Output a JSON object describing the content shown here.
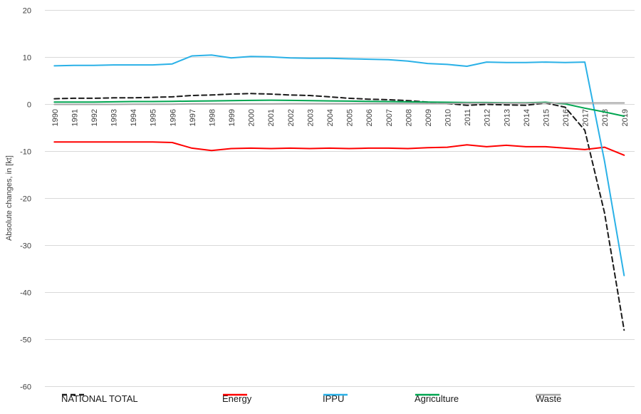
{
  "chart_data": {
    "type": "line",
    "title": "",
    "xlabel": "",
    "ylabel": "Absolute changes, in [kt]",
    "ylim": [
      -60,
      20
    ],
    "yticks": [
      20,
      10,
      0,
      -10,
      -20,
      -30,
      -40,
      -50,
      -60
    ],
    "grid": true,
    "legend_position": "bottom",
    "categories": [
      "1990",
      "1991",
      "1992",
      "1993",
      "1994",
      "1995",
      "1996",
      "1997",
      "1998",
      "1999",
      "2000",
      "2001",
      "2002",
      "2003",
      "2004",
      "2005",
      "2006",
      "2007",
      "2008",
      "2009",
      "2010",
      "2011",
      "2012",
      "2013",
      "2014",
      "2015",
      "2016",
      "2017",
      "2018",
      "2019"
    ],
    "series": [
      {
        "name": "NATIONAL TOTAL",
        "color": "#1a1a1a",
        "style": "dashed",
        "values": [
          1.2,
          1.3,
          1.3,
          1.4,
          1.4,
          1.5,
          1.6,
          1.9,
          2.0,
          2.2,
          2.3,
          2.2,
          2.0,
          1.9,
          1.6,
          1.3,
          1.1,
          1.0,
          0.8,
          0.5,
          0.2,
          -0.2,
          0.0,
          -0.1,
          -0.2,
          0.3,
          -0.6,
          -5.5,
          -23.0,
          -48.0
        ]
      },
      {
        "name": "Energy",
        "color": "#ff0000",
        "style": "solid",
        "values": [
          -8.0,
          -8.0,
          -8.0,
          -8.0,
          -8.0,
          -8.0,
          -8.1,
          -9.3,
          -9.8,
          -9.4,
          -9.3,
          -9.4,
          -9.3,
          -9.4,
          -9.3,
          -9.4,
          -9.3,
          -9.3,
          -9.4,
          -9.2,
          -9.1,
          -8.6,
          -9.0,
          -8.7,
          -9.0,
          -9.0,
          -9.3,
          -9.6,
          -9.1,
          -10.8
        ]
      },
      {
        "name": "IPPU",
        "color": "#2ab1e7",
        "style": "solid",
        "values": [
          8.2,
          8.3,
          8.3,
          8.4,
          8.4,
          8.4,
          8.6,
          10.3,
          10.5,
          9.9,
          10.2,
          10.1,
          9.9,
          9.8,
          9.8,
          9.7,
          9.6,
          9.5,
          9.2,
          8.7,
          8.5,
          8.1,
          9.0,
          8.9,
          8.9,
          9.0,
          8.9,
          9.0,
          -12.0,
          -36.4
        ]
      },
      {
        "name": "Agriculture",
        "color": "#00a550",
        "style": "solid",
        "values": [
          0.5,
          0.5,
          0.5,
          0.55,
          0.6,
          0.6,
          0.65,
          0.7,
          0.75,
          0.8,
          0.85,
          0.9,
          0.85,
          0.8,
          0.75,
          0.7,
          0.65,
          0.6,
          0.55,
          0.5,
          0.45,
          0.4,
          0.4,
          0.35,
          0.35,
          0.45,
          0.1,
          -0.8,
          -1.6,
          -2.5
        ]
      },
      {
        "name": "Waste",
        "color": "#a6a6a6",
        "style": "solid",
        "values": [
          0.0,
          0.0,
          0.0,
          0.0,
          0.05,
          0.05,
          0.05,
          0.1,
          0.1,
          0.1,
          0.1,
          0.1,
          0.15,
          0.15,
          0.15,
          0.15,
          0.2,
          0.2,
          0.2,
          0.2,
          0.2,
          0.25,
          0.25,
          0.25,
          0.25,
          0.3,
          0.3,
          0.3,
          0.3,
          0.3
        ]
      }
    ]
  },
  "colors": {
    "background": "#ffffff",
    "gridline": "#d9d9d9",
    "axis_text": "#404040"
  }
}
